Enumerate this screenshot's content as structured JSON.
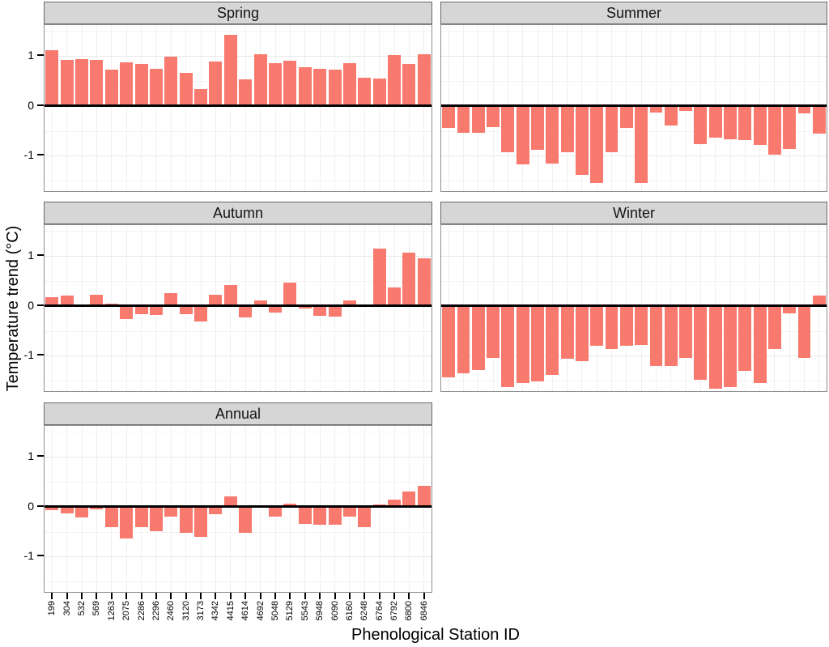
{
  "colors": {
    "bar": "#F8796E",
    "strip_bg": "#D6D6D6",
    "strip_border": "#686868",
    "panel_border": "#8F8F8F",
    "grid_major": "#E8E8E8",
    "grid_minor": "#F4F4F4",
    "grid_vertical": "#EFEFEF",
    "zero_line": "#000000",
    "axis_text": "#000000"
  },
  "chart_data": {
    "type": "bar",
    "title": "",
    "xlabel": "Phenological Station ID",
    "ylabel": "Temperature trend (°C)",
    "ylim": [
      -1.74,
      1.62
    ],
    "grid": true,
    "zero_line": true,
    "legend": "none",
    "facet_layout": [
      [
        "Spring",
        "Summer"
      ],
      [
        "Autumn",
        "Winter"
      ],
      [
        "Annual",
        ""
      ]
    ],
    "x": [
      "199",
      "304",
      "532",
      "569",
      "1263",
      "2075",
      "2286",
      "2296",
      "2460",
      "3120",
      "3173",
      "4342",
      "4415",
      "4614",
      "4692",
      "5048",
      "5129",
      "5543",
      "5948",
      "6090",
      "6160",
      "6248",
      "6764",
      "6792",
      "6800",
      "6846"
    ],
    "y_ticks": [
      {
        "value": 1,
        "label": "1"
      },
      {
        "value": 0,
        "label": "0"
      },
      {
        "value": -1,
        "label": "-1"
      }
    ],
    "facets": [
      {
        "name": "Spring",
        "values": [
          1.11,
          0.92,
          0.93,
          0.92,
          0.72,
          0.87,
          0.84,
          0.74,
          0.99,
          0.66,
          0.33,
          0.88,
          1.42,
          0.53,
          1.03,
          0.86,
          0.91,
          0.77,
          0.74,
          0.73,
          0.86,
          0.57,
          0.54,
          1.02,
          0.84,
          1.03
        ]
      },
      {
        "name": "Summer",
        "values": [
          -0.44,
          -0.54,
          -0.54,
          -0.43,
          -0.93,
          -1.18,
          -0.89,
          -1.16,
          -0.93,
          -1.38,
          -1.54,
          -0.93,
          -0.45,
          -1.55,
          -0.14,
          -0.39,
          -0.1,
          -0.77,
          -0.64,
          -0.67,
          -0.68,
          -0.78,
          -0.98,
          -0.86,
          -0.15,
          -0.56
        ]
      },
      {
        "name": "Autumn",
        "values": [
          0.18,
          0.21,
          0.02,
          0.22,
          0.04,
          -0.26,
          -0.17,
          -0.18,
          0.26,
          -0.17,
          -0.32,
          0.23,
          0.41,
          -0.24,
          0.11,
          -0.13,
          0.47,
          -0.06,
          -0.2,
          -0.22,
          0.11,
          0.0,
          1.15,
          0.36,
          1.07,
          0.95
        ]
      },
      {
        "name": "Winter",
        "values": [
          -1.44,
          -1.35,
          -1.29,
          -1.05,
          -1.63,
          -1.54,
          -1.52,
          -1.39,
          -1.06,
          -1.11,
          -0.8,
          -0.87,
          -0.8,
          -0.79,
          -1.21,
          -1.2,
          -1.05,
          -1.49,
          -1.66,
          -1.62,
          -1.3,
          -1.54,
          -0.86,
          -0.15,
          -1.04,
          0.2
        ]
      },
      {
        "name": "Annual",
        "values": [
          -0.08,
          -0.14,
          -0.22,
          -0.05,
          -0.42,
          -0.64,
          -0.41,
          -0.49,
          -0.2,
          -0.52,
          -0.6,
          -0.15,
          0.21,
          -0.52,
          0.0,
          -0.2,
          0.06,
          -0.34,
          -0.37,
          -0.37,
          -0.2,
          -0.41,
          0.04,
          0.14,
          0.3,
          0.41
        ]
      }
    ]
  }
}
